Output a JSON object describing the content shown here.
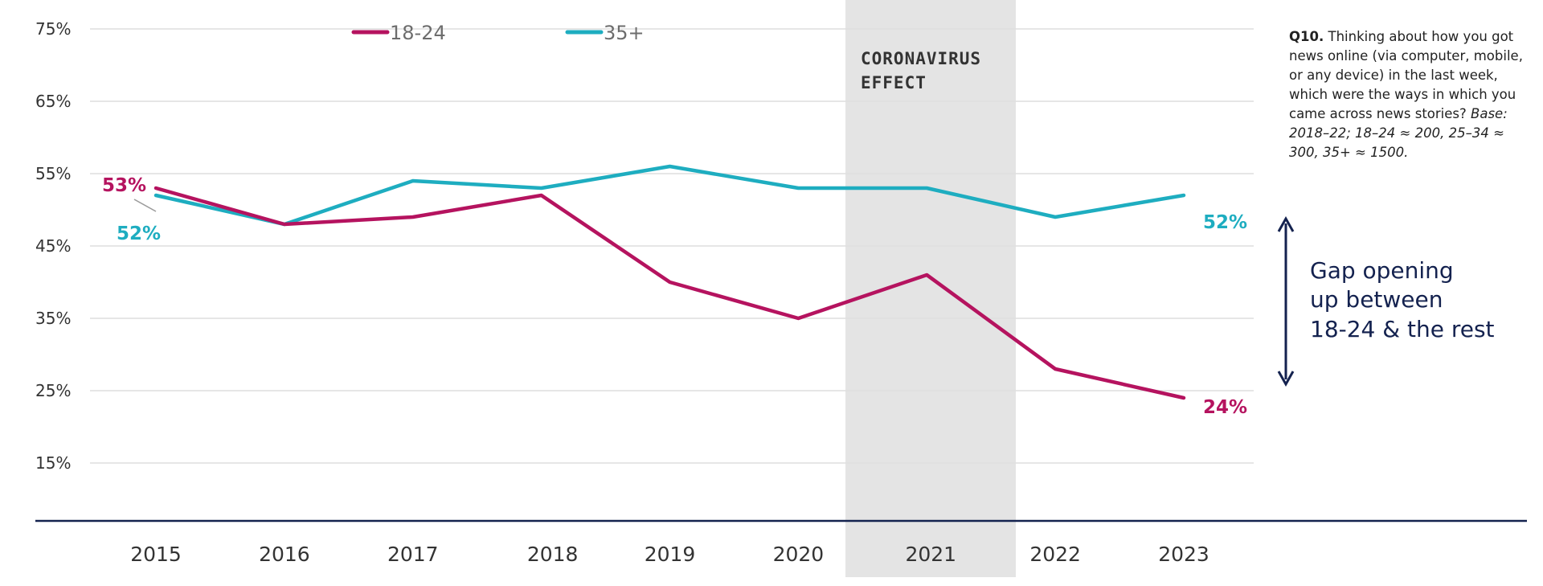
{
  "chart_data": {
    "type": "line",
    "categories": [
      "2015",
      "2016",
      "2017",
      "2018",
      "2019",
      "2020",
      "2021",
      "2022",
      "2023"
    ],
    "series": [
      {
        "name": "18-24",
        "color": "#b5135f",
        "values": [
          53,
          48,
          49,
          52,
          40,
          35,
          41,
          28,
          24
        ]
      },
      {
        "name": "35+",
        "color": "#1eadc0",
        "values": [
          52,
          48,
          54,
          53,
          56,
          53,
          53,
          49,
          52
        ]
      }
    ],
    "y_ticks": [
      "75%",
      "65%",
      "55%",
      "45%",
      "35%",
      "25%",
      "15%"
    ],
    "y_tick_values": [
      75,
      65,
      55,
      45,
      35,
      25,
      15
    ],
    "ylim": [
      7,
      79
    ],
    "grid": true,
    "legend_position": "top",
    "shaded_region": {
      "category": "2021",
      "label_line1": "CORONAVIRUS",
      "label_line2": "EFFECT",
      "color": "#e4e4e4"
    },
    "point_labels": {
      "start_18_24": "53%",
      "start_35_plus": "52%",
      "end_35_plus": "52%",
      "end_18_24": "24%"
    },
    "annotation": {
      "line1": "Gap opening",
      "line2": "up between",
      "line3": "18-24 & the rest",
      "color": "#14224f"
    }
  },
  "note": {
    "bold": "Q10.",
    "text": " Thinking about how you got news online (via computer, mobile, or any device) in the last week, which were the ways in which you came across news stories?",
    "italic": " Base: 2018–22; 18–24 ≈ 200, 25–34 ≈ 300, 35+ ≈ 1500."
  }
}
